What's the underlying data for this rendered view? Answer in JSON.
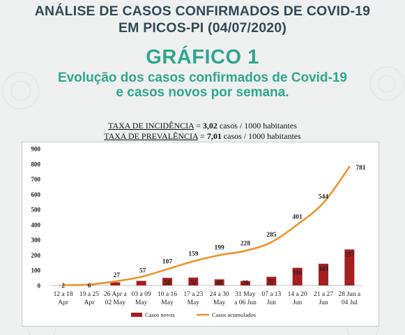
{
  "header": {
    "line1": "ANÁLISE DE CASOS CONFIRMADOS DE COVID-19",
    "line2": "EM PICOS-PI (04/07/2020)",
    "grafico": "GRÁFICO 1",
    "subtitle1": "Evolução dos casos confirmados de Covid-19",
    "subtitle2": "e casos novos por semana."
  },
  "rates": {
    "incidencia_label": "TAXA DE INCIDÊNCIA",
    "incidencia_value": "3,02",
    "incidencia_unit": "casos / 1000 habitantes",
    "prevalencia_label": "TAXA DE PREVALÊNCIA",
    "prevalencia_value": "7,01",
    "prevalencia_unit": "casos / 1000 habitantes"
  },
  "colors": {
    "bar": "#a51f1f",
    "line": "#f0922a",
    "title": "#2f4a55",
    "accent": "#2fa68f"
  },
  "chart_data": {
    "type": "bar",
    "categories": [
      [
        "12 a 18",
        "Apr"
      ],
      [
        "19 a 25",
        "Apr"
      ],
      [
        "26 Apr a",
        "02 May"
      ],
      [
        "03 a 09",
        "May"
      ],
      [
        "10 a 16",
        "May"
      ],
      [
        "17 a 23",
        "May"
      ],
      [
        "24 a 30",
        "May"
      ],
      [
        "31 May",
        "a 06 Jun"
      ],
      [
        "07 a 13",
        "Jun"
      ],
      [
        "14 a 20",
        "Jun"
      ],
      [
        "21 a 27",
        "Jun"
      ],
      [
        "28 Jun a",
        "04 Jul"
      ]
    ],
    "series": [
      {
        "name": "Casos novos",
        "type": "bar",
        "values": [
          2,
          4,
          21,
          30,
          50,
          52,
          40,
          29,
          57,
          116,
          143,
          237
        ]
      },
      {
        "name": "Casos acumulados",
        "type": "line",
        "values": [
          2,
          6,
          27,
          57,
          107,
          159,
          199,
          228,
          285,
          401,
          544,
          781
        ]
      }
    ],
    "ylim": [
      0,
      900
    ],
    "yticks": [
      0,
      100,
      200,
      300,
      400,
      500,
      600,
      700,
      800,
      900
    ],
    "bar_labels": [
      null,
      null,
      null,
      null,
      "50",
      "52",
      "40",
      "29",
      "57",
      "116",
      "143",
      "237"
    ],
    "line_labels": [
      "2",
      "6",
      "27",
      "57",
      "107",
      "159",
      "199",
      "228",
      "285",
      "401",
      "544",
      "781"
    ],
    "grid": false,
    "legend_position": "bottom"
  }
}
